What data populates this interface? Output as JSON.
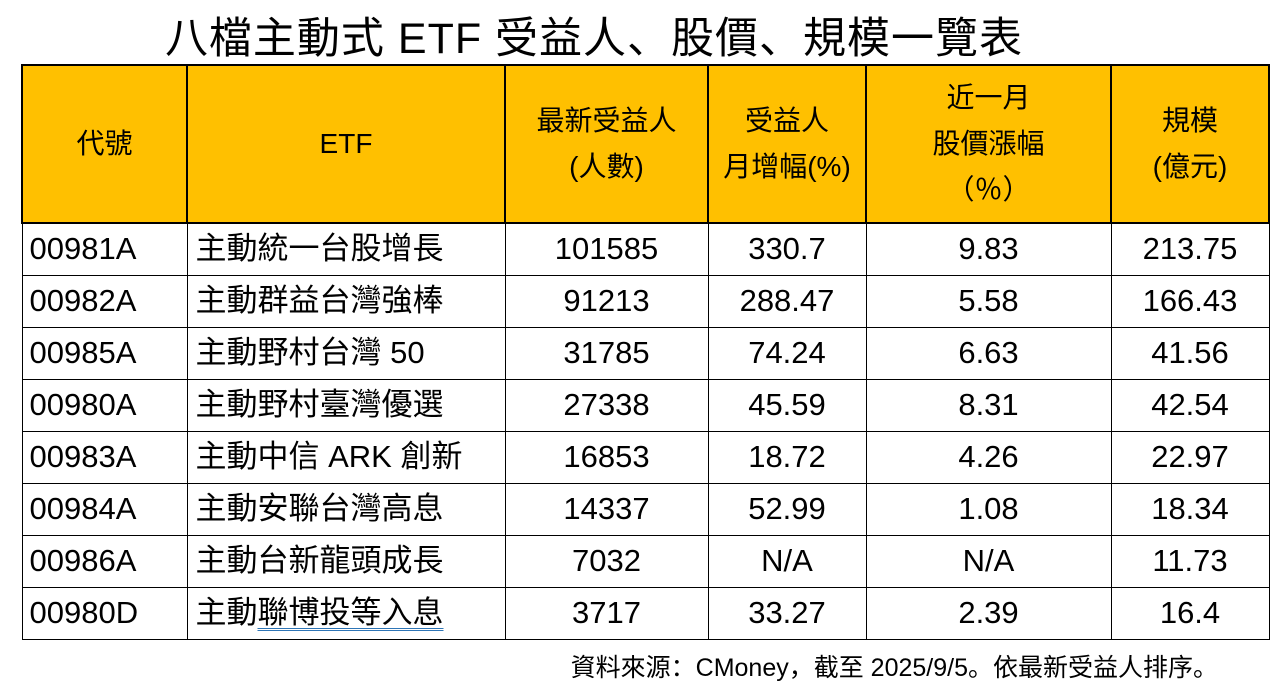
{
  "title": "八檔主動式 ETF 受益人、股價、規模一覽表",
  "footer": "資料來源：CMoney，截至 2025/9/5。依最新受益人排序。",
  "colors": {
    "header_bg": "#FFC000",
    "border": "#000000",
    "underline_blue": "#2E75B6",
    "text": "#000000"
  },
  "chart_data": {
    "type": "table",
    "title": "八檔主動式 ETF 受益人、股價、規模一覽表",
    "columns": [
      "代號",
      "ETF",
      "最新受益人\n(人數)",
      "受益人\n月增幅(%)",
      "近一月\n股價漲幅\n（％）",
      "規模\n(億元)"
    ],
    "column_keys": [
      "code",
      "etf-name",
      "latest-holders",
      "holders-mom-pct",
      "price-change-1m-pct",
      "aum-100m-twd"
    ],
    "rows": [
      [
        "00981A",
        "主動統一台股增長",
        "101585",
        "330.7",
        "9.83",
        "213.75"
      ],
      [
        "00982A",
        "主動群益台灣強棒",
        "91213",
        "288.47",
        "5.58",
        "166.43"
      ],
      [
        "00985A",
        "主動野村台灣 50",
        "31785",
        "74.24",
        "6.63",
        "41.56"
      ],
      [
        "00980A",
        "主動野村臺灣優選",
        "27338",
        "45.59",
        "8.31",
        "42.54"
      ],
      [
        "00983A",
        "主動中信 ARK 創新",
        "16853",
        "18.72",
        "4.26",
        "22.97"
      ],
      [
        "00984A",
        "主動安聯台灣高息",
        "14337",
        "52.99",
        "1.08",
        "18.34"
      ],
      [
        "00986A",
        "主動台新龍頭成長",
        "7032",
        "N/A",
        "N/A",
        "11.73"
      ],
      [
        "00980D",
        "主動聯博投等入息",
        "3717",
        "33.27",
        "2.39",
        "16.4"
      ]
    ],
    "underline": {
      "row_index": 7,
      "col_index": 1,
      "prefix": "主動",
      "underlined": "聯博投等入息"
    },
    "sort_note": "依最新受益人排序",
    "source": "CMoney",
    "as_of_date": "2025/9/5"
  }
}
